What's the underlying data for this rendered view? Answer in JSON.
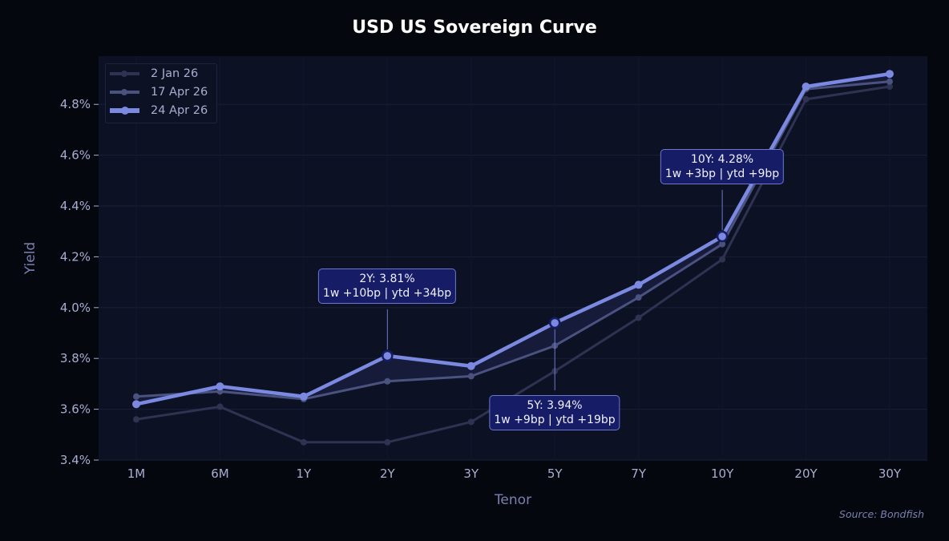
{
  "chart_data": {
    "type": "line",
    "title": "USD US Sovereign Curve",
    "xlabel": "Tenor",
    "ylabel": "Yield",
    "categories": [
      "1M",
      "6M",
      "1Y",
      "2Y",
      "3Y",
      "5Y",
      "7Y",
      "10Y",
      "20Y",
      "30Y"
    ],
    "ylim": [
      3.4,
      4.99
    ],
    "yticks": [
      3.4,
      3.6,
      3.8,
      4.0,
      4.2,
      4.4,
      4.6,
      4.8
    ],
    "ytick_labels": [
      "3.4%",
      "3.6%",
      "3.8%",
      "4.0%",
      "4.2%",
      "4.4%",
      "4.6%",
      "4.8%"
    ],
    "grid": true,
    "legend_position": "top-left",
    "series": [
      {
        "name": "2 Jan 26",
        "color": "#2e3352",
        "values": [
          3.56,
          3.61,
          3.47,
          3.47,
          3.55,
          3.75,
          3.96,
          4.19,
          4.82,
          4.87
        ]
      },
      {
        "name": "17 Apr 26",
        "color": "#4a5280",
        "values": [
          3.65,
          3.67,
          3.64,
          3.71,
          3.73,
          3.85,
          4.04,
          4.25,
          4.86,
          4.89
        ]
      },
      {
        "name": "24 Apr 26",
        "color": "#7b8ae0",
        "values": [
          3.62,
          3.69,
          3.65,
          3.81,
          3.77,
          3.94,
          4.09,
          4.28,
          4.87,
          4.92
        ]
      }
    ],
    "annotations": [
      {
        "tenor": "2Y",
        "line1": "2Y: 3.81%",
        "line2": "1w +10bp | ytd +34bp",
        "placement": "above"
      },
      {
        "tenor": "5Y",
        "line1": "5Y: 3.94%",
        "line2": "1w +9bp | ytd +19bp",
        "placement": "below"
      },
      {
        "tenor": "10Y",
        "line1": "10Y: 4.28%",
        "line2": "1w +3bp | ytd +9bp",
        "placement": "above"
      }
    ],
    "source": "Source: Bondfish"
  },
  "colors": {
    "background": "#05070f",
    "plot_background": "#0d1124",
    "grid": "#1a1f38",
    "fill_between": "#1a1e40",
    "annotation_bg": "#171c66"
  }
}
